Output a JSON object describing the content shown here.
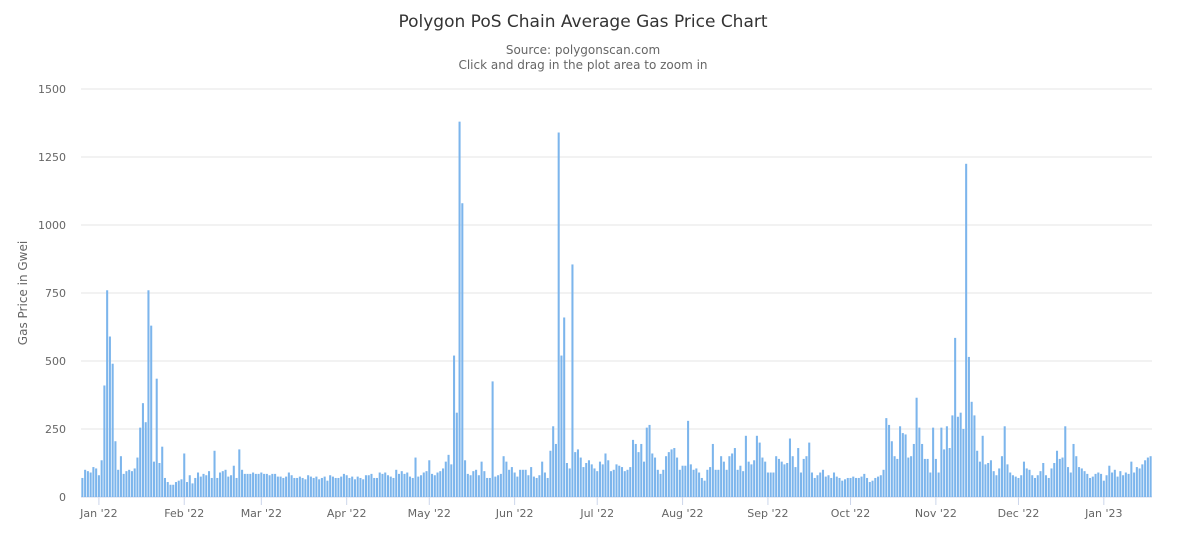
{
  "chart_data": {
    "type": "bar",
    "title": "Polygon PoS Chain Average Gas Price Chart",
    "subtitle": "Source: polygonscan.com",
    "hint": "Click and drag in the plot area to zoom in",
    "xlabel": "",
    "ylabel": "Gas Price in Gwei",
    "ylim": [
      0,
      1500
    ],
    "y_ticks": [
      "0",
      "250",
      "500",
      "750",
      "1000",
      "1250",
      "1500"
    ],
    "x_ticks": [
      "Jan '22",
      "Feb '22",
      "Mar '22",
      "Apr '22",
      "May '22",
      "Jun '22",
      "Jul '22",
      "Aug '22",
      "Sep '22",
      "Oct '22",
      "Nov '22",
      "Dec '22",
      "Jan '23"
    ],
    "x_range": [
      "2021-12-26",
      "2023-01-18"
    ],
    "x_interval": "daily",
    "grid": true,
    "legend": "none",
    "bar_color": "#7cb5ec",
    "values": [
      70,
      100,
      95,
      90,
      110,
      105,
      80,
      135,
      410,
      760,
      590,
      490,
      205,
      100,
      150,
      85,
      95,
      100,
      95,
      105,
      145,
      255,
      345,
      275,
      760,
      630,
      130,
      435,
      125,
      185,
      70,
      55,
      45,
      45,
      55,
      60,
      65,
      160,
      55,
      80,
      50,
      70,
      90,
      75,
      85,
      80,
      95,
      70,
      170,
      70,
      90,
      95,
      100,
      75,
      80,
      115,
      70,
      175,
      100,
      85,
      85,
      85,
      90,
      85,
      85,
      90,
      85,
      85,
      80,
      85,
      85,
      75,
      75,
      70,
      75,
      90,
      80,
      70,
      70,
      75,
      70,
      65,
      80,
      75,
      70,
      75,
      65,
      70,
      75,
      60,
      80,
      75,
      70,
      70,
      75,
      85,
      80,
      70,
      75,
      65,
      75,
      70,
      65,
      80,
      80,
      85,
      70,
      70,
      90,
      85,
      90,
      80,
      75,
      70,
      100,
      85,
      95,
      85,
      90,
      75,
      70,
      145,
      75,
      80,
      90,
      95,
      135,
      85,
      80,
      90,
      95,
      105,
      130,
      155,
      120,
      520,
      310,
      1380,
      1080,
      135,
      85,
      80,
      95,
      100,
      80,
      130,
      95,
      70,
      70,
      425,
      75,
      80,
      85,
      150,
      130,
      100,
      110,
      90,
      75,
      100,
      100,
      100,
      80,
      110,
      75,
      70,
      80,
      130,
      90,
      70,
      170,
      260,
      195,
      1340,
      520,
      660,
      125,
      105,
      855,
      165,
      175,
      145,
      110,
      125,
      135,
      120,
      105,
      95,
      130,
      120,
      160,
      135,
      95,
      100,
      120,
      115,
      110,
      95,
      100,
      110,
      210,
      195,
      165,
      195,
      130,
      255,
      265,
      160,
      145,
      100,
      85,
      100,
      150,
      165,
      175,
      180,
      145,
      100,
      115,
      115,
      280,
      120,
      100,
      105,
      90,
      70,
      60,
      100,
      110,
      195,
      100,
      100,
      150,
      130,
      100,
      150,
      160,
      180,
      100,
      115,
      95,
      225,
      130,
      120,
      135,
      225,
      200,
      145,
      130,
      90,
      90,
      90,
      150,
      140,
      130,
      120,
      125,
      215,
      150,
      110,
      180,
      90,
      140,
      150,
      200,
      90,
      70,
      80,
      90,
      100,
      75,
      80,
      70,
      90,
      75,
      70,
      60,
      65,
      70,
      70,
      75,
      70,
      70,
      75,
      85,
      70,
      55,
      60,
      70,
      75,
      80,
      100,
      290,
      265,
      205,
      150,
      140,
      260,
      235,
      230,
      145,
      150,
      195,
      365,
      255,
      195,
      140,
      140,
      90,
      255,
      140,
      90,
      255,
      175,
      260,
      180,
      300,
      585,
      295,
      310,
      250,
      1225,
      515,
      350,
      300,
      170,
      130,
      225,
      120,
      125,
      135,
      95,
      80,
      105,
      150,
      260,
      120,
      90,
      80,
      75,
      70,
      80,
      130,
      105,
      100,
      80,
      70,
      80,
      95,
      125,
      80,
      70,
      105,
      125,
      170,
      140,
      145,
      260,
      110,
      90,
      195,
      150,
      110,
      105,
      95,
      85,
      70,
      75,
      85,
      90,
      85,
      60,
      80,
      115,
      90,
      100,
      75,
      95,
      80,
      90,
      85,
      130,
      90,
      110,
      105,
      120,
      135,
      145,
      150
    ]
  }
}
